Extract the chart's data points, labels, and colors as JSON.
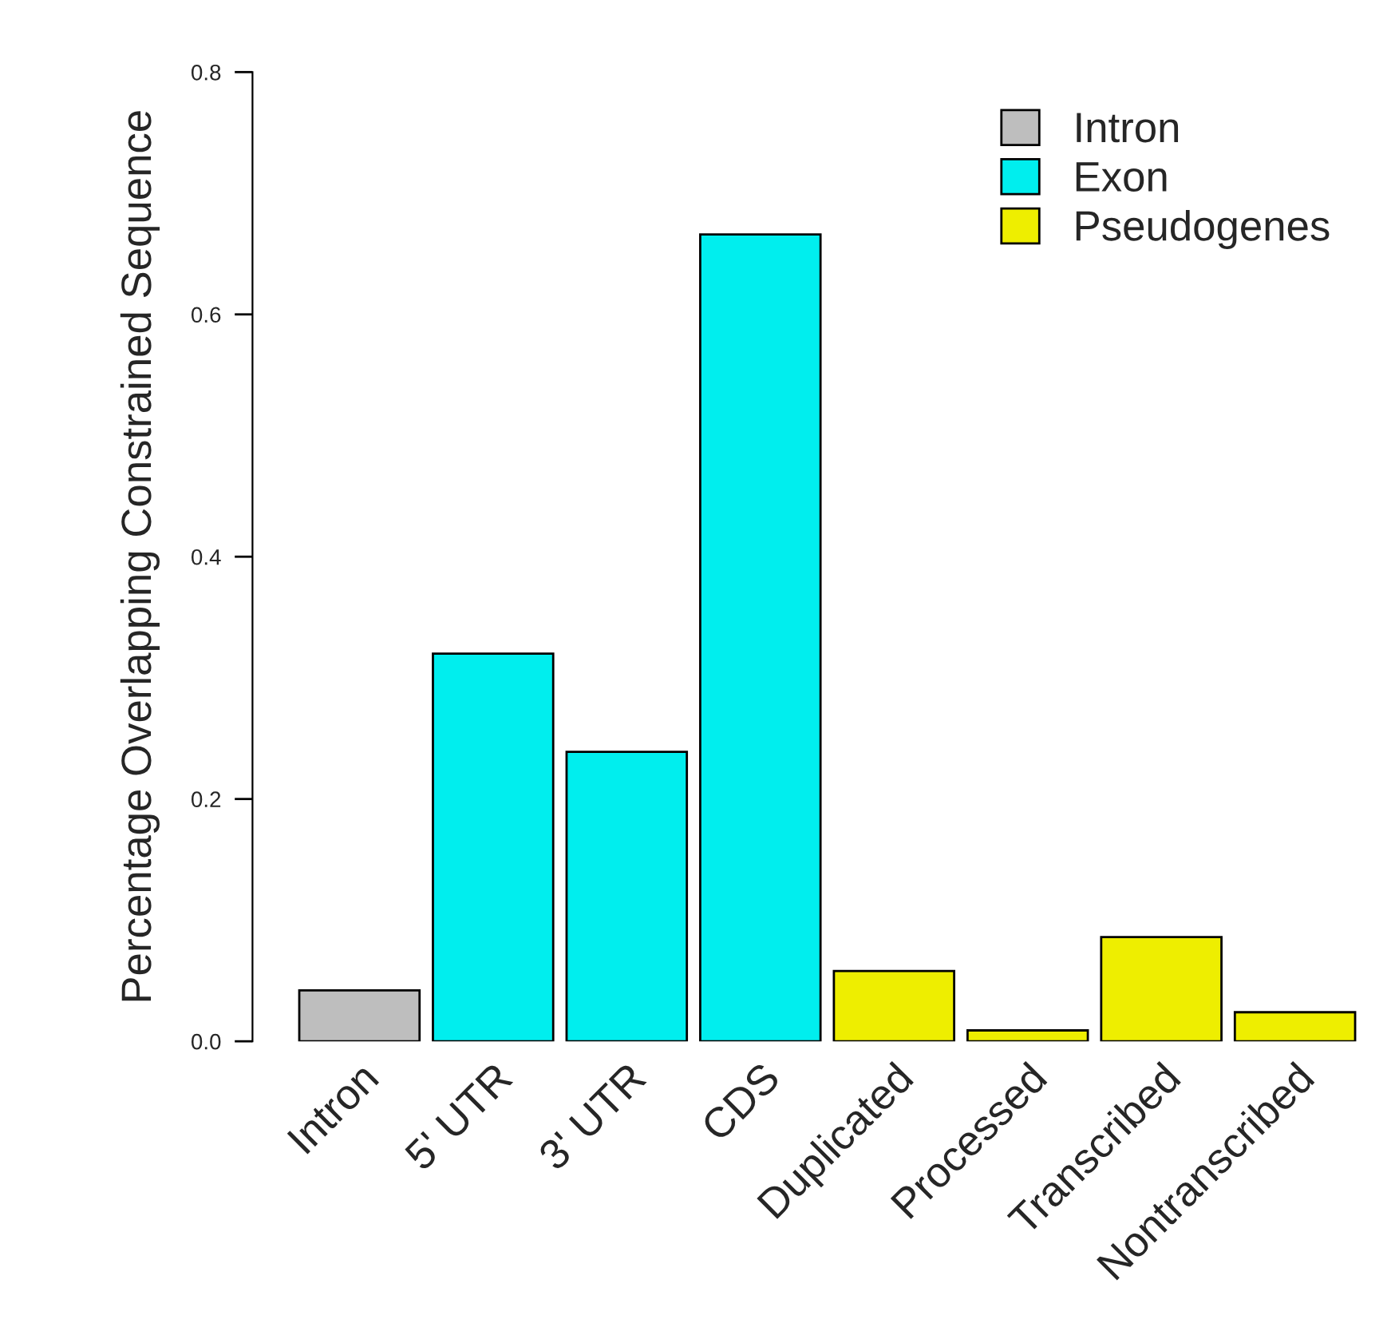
{
  "chart_data": {
    "type": "bar",
    "ylabel": "Percentage Overlapping Constrained Sequence",
    "categories": [
      "Intron",
      "5' UTR",
      "3' UTR",
      "CDS",
      "Duplicated",
      "Processed",
      "Transcribed",
      "Nontranscribed"
    ],
    "series": [
      {
        "name": "Intron",
        "color": "#bebebe",
        "values": [
          0.042,
          null,
          null,
          null,
          null,
          null,
          null,
          null
        ]
      },
      {
        "name": "Exon",
        "color": "#00eeee",
        "values": [
          null,
          0.32,
          0.239,
          0.666,
          null,
          null,
          null,
          null
        ]
      },
      {
        "name": "Pseudogenes",
        "color": "#eeee00",
        "values": [
          null,
          null,
          null,
          null,
          0.058,
          0.009,
          0.086,
          0.024
        ]
      }
    ],
    "ylim": [
      0,
      0.8
    ],
    "yticks": [
      {
        "value": 0,
        "label": "0.0"
      },
      0.2,
      0.4,
      0.6,
      0.8
    ],
    "grid": false,
    "legend": "top right"
  }
}
